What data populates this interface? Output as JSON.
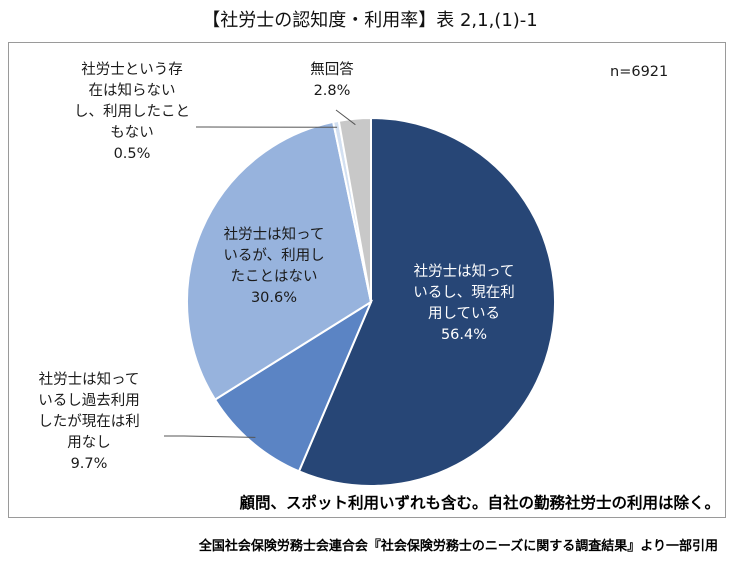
{
  "title": "【社労士の認知度・利用率】表 2,1,(1)-1",
  "sample_size": "n=6921",
  "note": "顧問、スポット利用いずれも含む。自社の勤務社労士の利用は除く。",
  "source": "全国社会保険労務士会連合会『社会保険労務士のニーズに関する調査結果』より一部引用",
  "chart_data": {
    "type": "pie",
    "start_angle_deg": 0,
    "direction": "clockwise",
    "slices": [
      {
        "label": "社労士は知っているし、現在利用している",
        "display": "社労士は知って\nいるし、現在利\n用している\n56.4%",
        "value": 56.4,
        "color": "#274676"
      },
      {
        "label": "社労士は知っているし過去利用したが現在は利用なし",
        "display": "社労士は知って\nいるし過去利用\nしたが現在は利\n用なし\n9.7%",
        "value": 9.7,
        "color": "#5b84c4"
      },
      {
        "label": "社労士は知っているが、利用したことはない",
        "display": "社労士は知って\nいるが、利用し\nたことはない\n30.6%",
        "value": 30.6,
        "color": "#97b3dd"
      },
      {
        "label": "社労士という存在は知らないし、利用したこともない",
        "display": "社労士という存\n在は知らない\nし、利用したこと\nもない\n0.5%",
        "value": 0.5,
        "color": "#d3e0f1"
      },
      {
        "label": "無回答",
        "display": "無回答\n2.8%",
        "value": 2.8,
        "color": "#c8c8c8"
      }
    ]
  }
}
